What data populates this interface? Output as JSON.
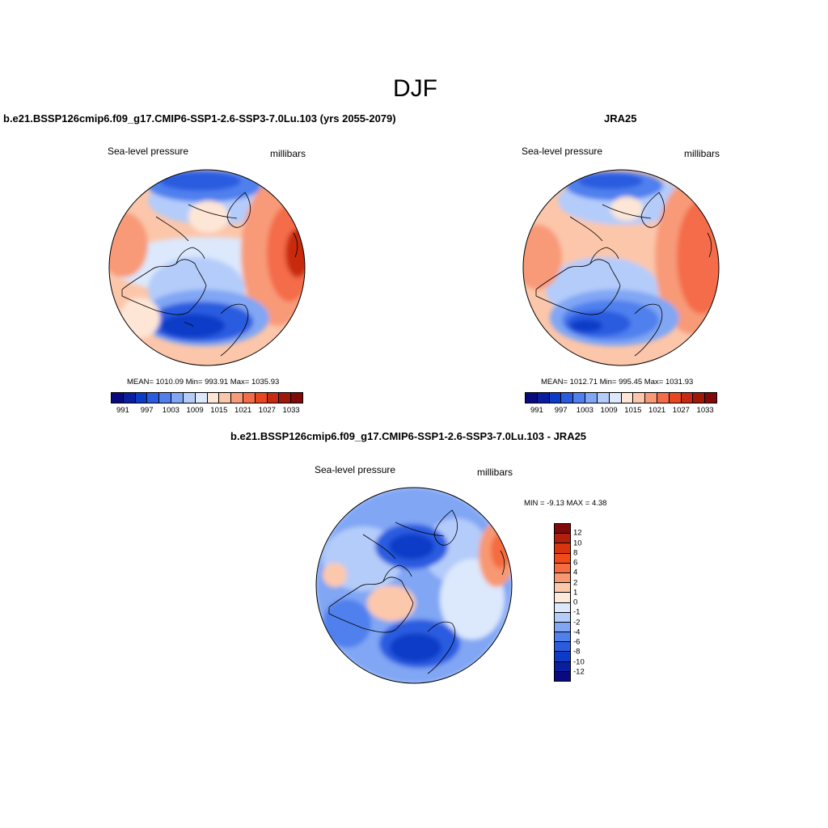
{
  "season": "DJF",
  "panels": [
    {
      "title": "b.e21.BSSP126cmip6.f09_g17.CMIP6-SSP1-2.6-SSP3-7.0Lu.103 (yrs 2055-2079)",
      "left_label": "Sea-level pressure",
      "right_label": "millibars",
      "stats": "MEAN= 1010.09  Min= 993.91  Max= 1035.93"
    },
    {
      "title": "JRA25",
      "left_label": "Sea-level pressure",
      "right_label": "millibars",
      "stats": "MEAN= 1012.71  Min= 995.45  Max= 1031.93"
    },
    {
      "title": "b.e21.BSSP126cmip6.f09_g17.CMIP6-SSP1-2.6-SSP3-7.0Lu.103 - JRA25",
      "left_label": "Sea-level pressure",
      "right_label": "millibars",
      "stats": "MIN =  -9.13 MAX =   4.38"
    }
  ],
  "colorbar_abs": {
    "colors": [
      "#0a0a80",
      "#0a1ea0",
      "#0a3cc8",
      "#2a5ce0",
      "#5080ee",
      "#80a6f4",
      "#b4ccfa",
      "#dce8fc",
      "#fde6d6",
      "#fcc6aa",
      "#f89a78",
      "#f46c48",
      "#ea4620",
      "#c82a10",
      "#a01808",
      "#800a0a"
    ],
    "tick_labels": [
      "991",
      "997",
      "1003",
      "1009",
      "1015",
      "1021",
      "1027",
      "1033"
    ]
  },
  "colorbar_diff": {
    "colors": [
      "#800a0a",
      "#b0200c",
      "#d83410",
      "#f04a18",
      "#f46c40",
      "#f89872",
      "#fcc8ac",
      "#fdeadc",
      "#dce8fc",
      "#b4ccfa",
      "#80a6f4",
      "#5080ee",
      "#2a5ce0",
      "#0a3cc8",
      "#0a1ea0",
      "#0a0a80"
    ],
    "tick_labels": [
      "12",
      "10",
      "8",
      "6",
      "4",
      "2",
      "1",
      "0",
      "-1",
      "-2",
      "-4",
      "-6",
      "-8",
      "-10",
      "-12"
    ]
  }
}
